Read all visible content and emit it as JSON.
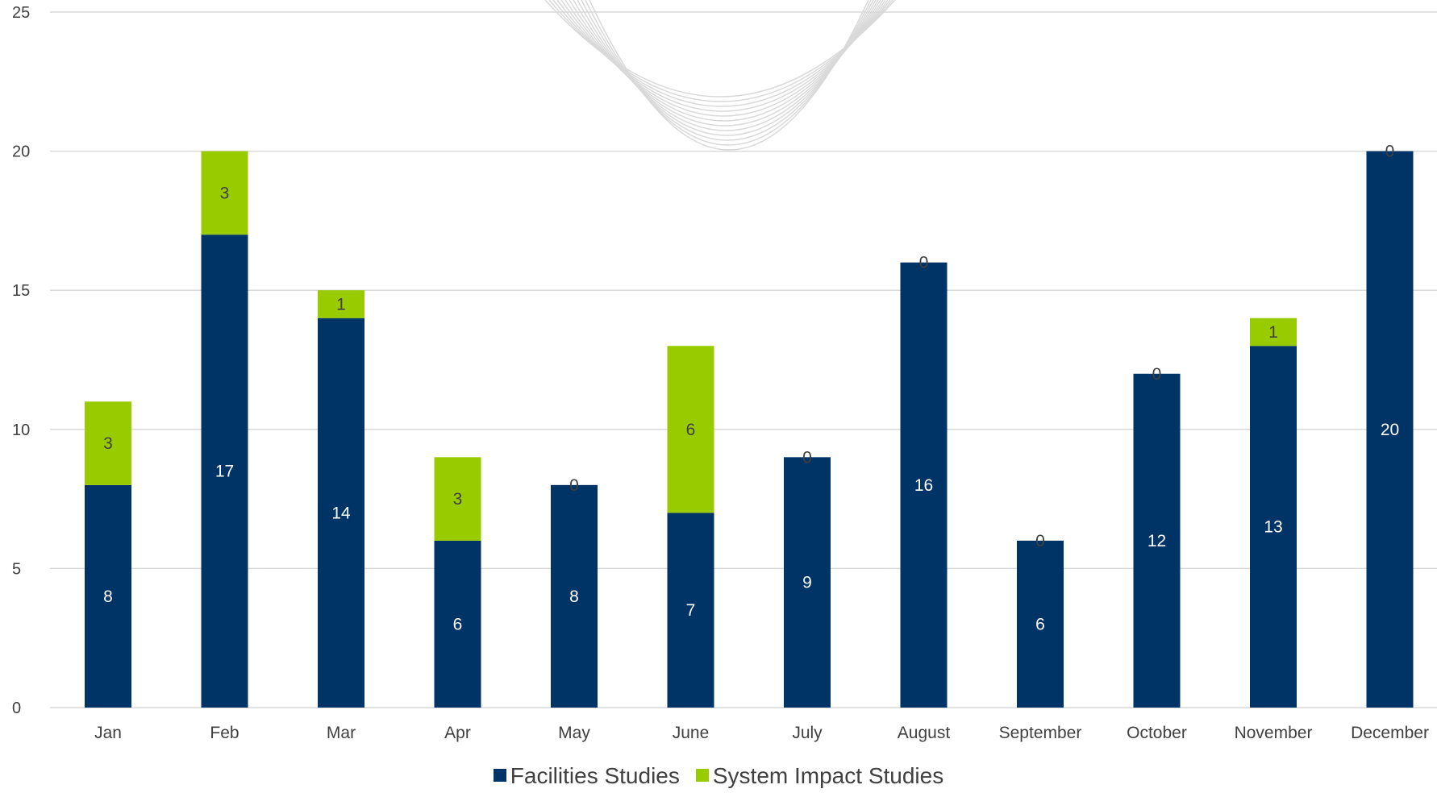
{
  "chart_data": {
    "type": "bar",
    "stacked": true,
    "categories": [
      "Jan",
      "Feb",
      "Mar",
      "Apr",
      "May",
      "June",
      "July",
      "August",
      "September",
      "October",
      "November",
      "December"
    ],
    "series": [
      {
        "name": "Facilities Studies",
        "color": "#003366",
        "label_color": "#ffffff",
        "values": [
          8,
          17,
          14,
          6,
          8,
          7,
          9,
          16,
          6,
          12,
          13,
          20
        ]
      },
      {
        "name": "System Impact Studies",
        "color": "#99cc00",
        "label_color": "#404040",
        "values": [
          3,
          3,
          1,
          3,
          0,
          6,
          0,
          0,
          0,
          0,
          1,
          0
        ]
      }
    ],
    "ylim": [
      0,
      25
    ],
    "yticks": [
      "0",
      "5",
      "10",
      "15",
      "20",
      "25"
    ],
    "grid": true,
    "legend": "bottom",
    "data_labels": true,
    "decoration": {
      "watermark": "curved-lines",
      "color": "#d9d9d9"
    }
  }
}
